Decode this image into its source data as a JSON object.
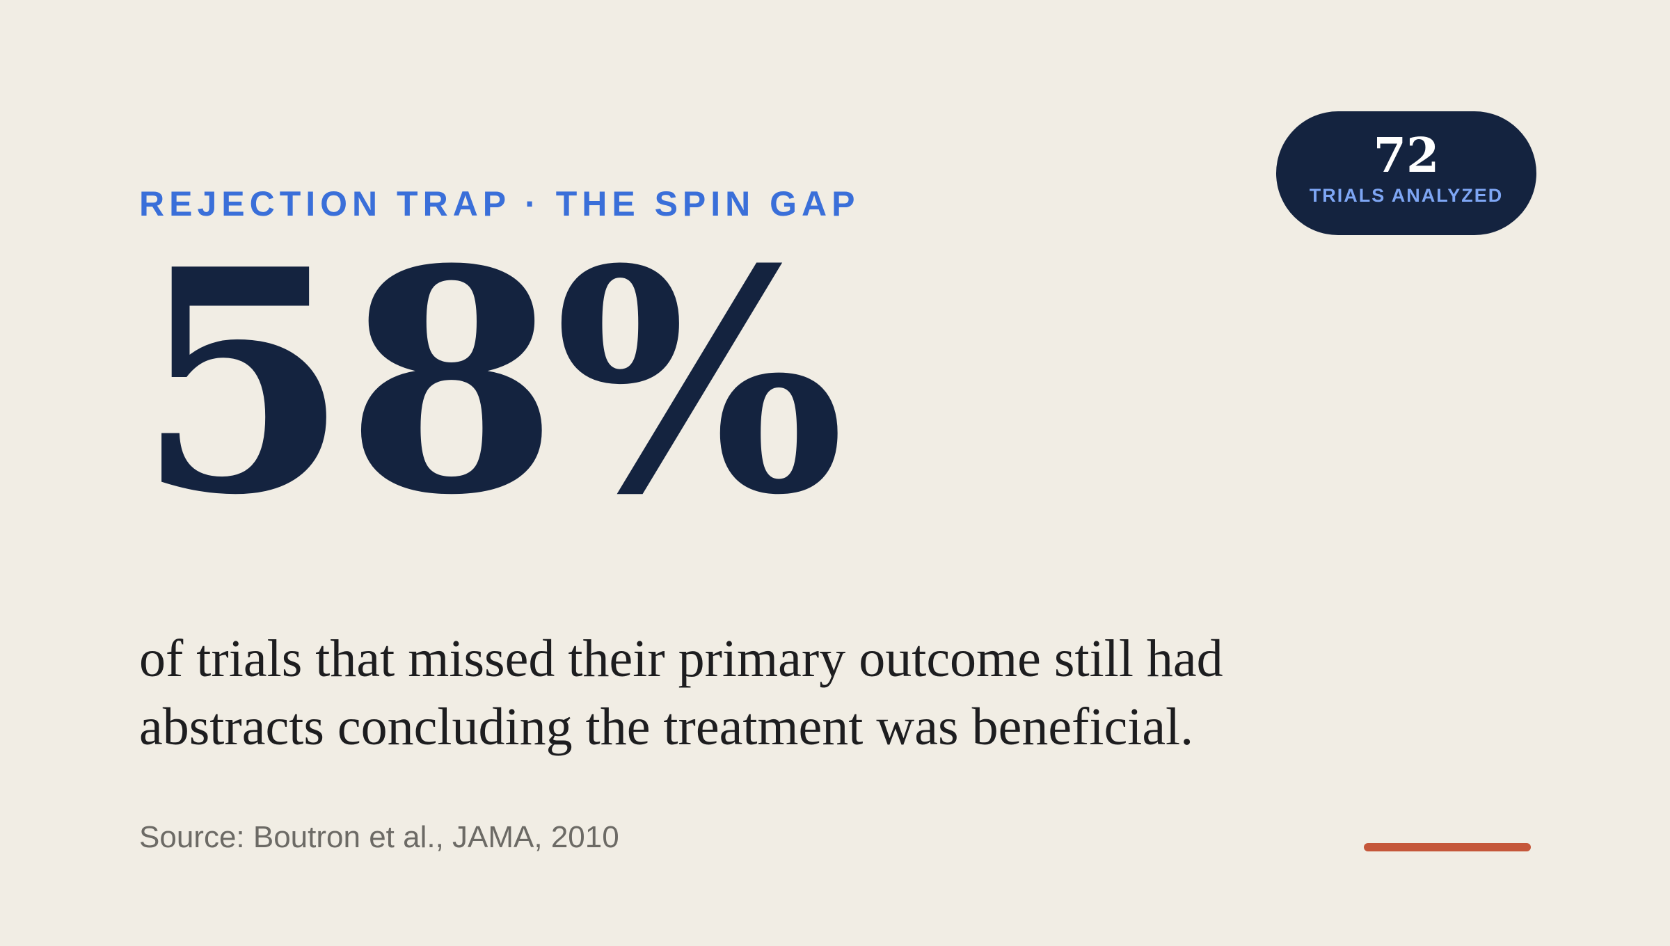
{
  "kicker": "REJECTION TRAP · THE SPIN GAP",
  "stat": {
    "value": "58%"
  },
  "statement": "of trials that missed their primary outcome still had abstracts concluding the treatment was beneficial.",
  "source": "Source: Boutron et al., JAMA, 2010",
  "badge": {
    "number": "72",
    "label": "TRIALS ANALYZED"
  },
  "colors": {
    "background": "#f1ede4",
    "navy": "#14233f",
    "accent_blue": "#3a6fd9",
    "accent_orange": "#c5573a"
  }
}
